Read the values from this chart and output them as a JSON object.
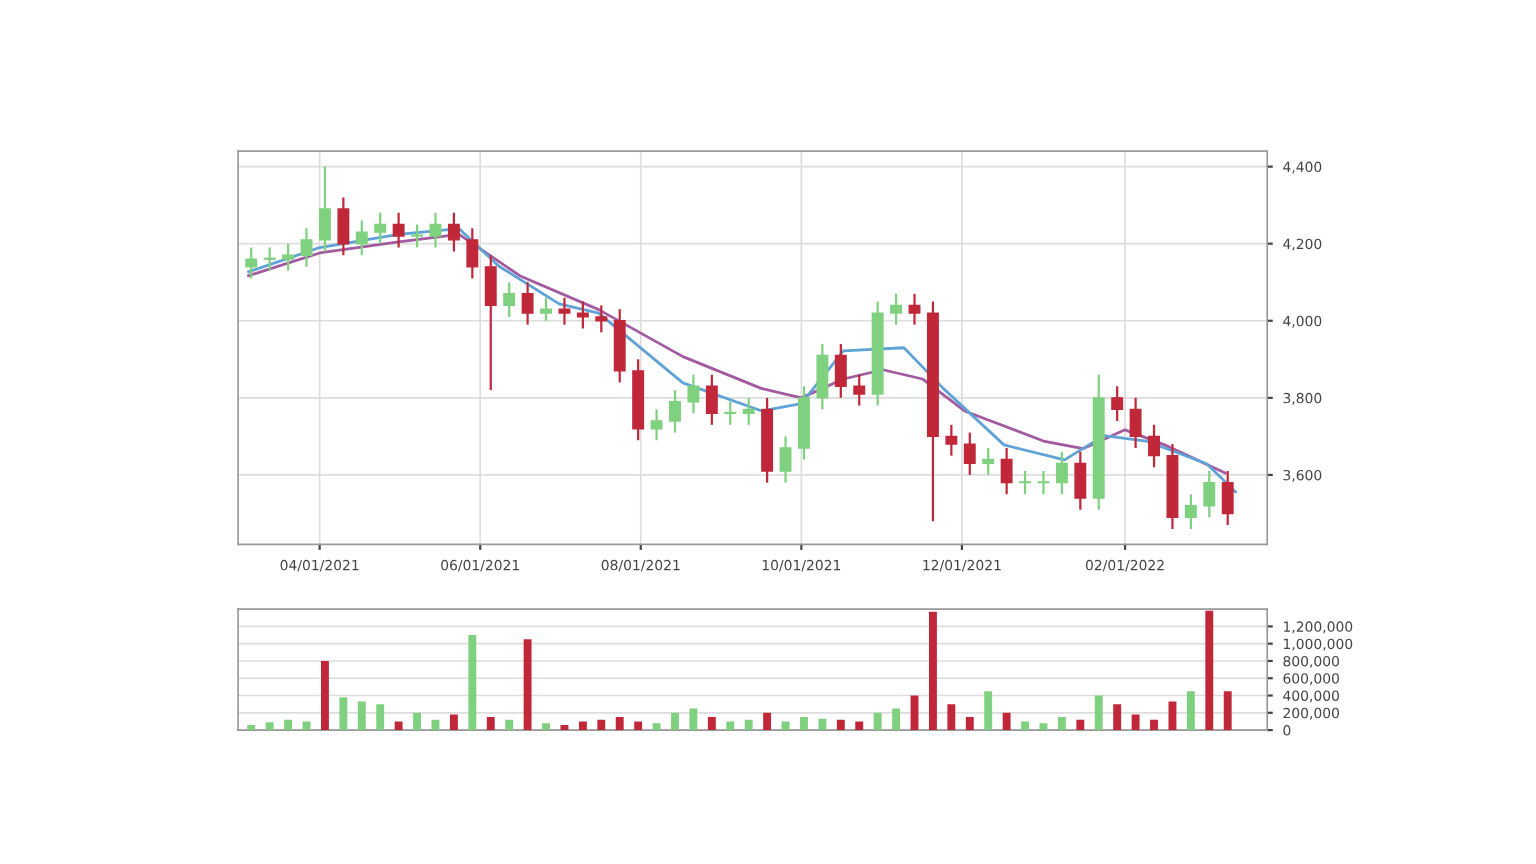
{
  "chart_data": [
    {
      "type": "candlestick",
      "x": [
        "2021-03-06",
        "2021-03-13",
        "2021-03-20",
        "2021-03-27",
        "2021-04-03",
        "2021-04-10",
        "2021-04-17",
        "2021-04-24",
        "2021-05-01",
        "2021-05-08",
        "2021-05-15",
        "2021-05-22",
        "2021-05-29",
        "2021-06-05",
        "2021-06-12",
        "2021-06-19",
        "2021-06-26",
        "2021-07-03",
        "2021-07-10",
        "2021-07-17",
        "2021-07-24",
        "2021-07-31",
        "2021-08-07",
        "2021-08-14",
        "2021-08-21",
        "2021-08-28",
        "2021-09-04",
        "2021-09-11",
        "2021-09-18",
        "2021-09-25",
        "2021-10-02",
        "2021-10-09",
        "2021-10-16",
        "2021-10-23",
        "2021-10-30",
        "2021-11-06",
        "2021-11-13",
        "2021-11-20",
        "2021-11-27",
        "2021-12-04",
        "2021-12-11",
        "2021-12-18",
        "2021-12-25",
        "2022-01-01",
        "2022-01-08",
        "2022-01-15",
        "2022-01-22",
        "2022-01-29",
        "2022-02-05",
        "2022-02-12",
        "2022-02-19",
        "2022-02-26",
        "2022-03-05",
        "2022-03-12"
      ],
      "ohlc": [
        [
          4140,
          4190,
          4110,
          4160
        ],
        [
          4160,
          4190,
          4130,
          4160
        ],
        [
          4160,
          4200,
          4130,
          4170
        ],
        [
          4170,
          4240,
          4140,
          4210
        ],
        [
          4210,
          4400,
          4180,
          4290
        ],
        [
          4290,
          4320,
          4170,
          4200
        ],
        [
          4200,
          4260,
          4170,
          4230
        ],
        [
          4230,
          4280,
          4200,
          4250
        ],
        [
          4250,
          4280,
          4190,
          4220
        ],
        [
          4220,
          4250,
          4190,
          4220
        ],
        [
          4220,
          4280,
          4190,
          4250
        ],
        [
          4250,
          4280,
          4180,
          4210
        ],
        [
          4210,
          4240,
          4110,
          4140
        ],
        [
          4140,
          4170,
          3820,
          4040
        ],
        [
          4040,
          4100,
          4010,
          4070
        ],
        [
          4070,
          4100,
          3990,
          4020
        ],
        [
          4020,
          4060,
          4000,
          4030
        ],
        [
          4030,
          4060,
          3990,
          4020
        ],
        [
          4020,
          4050,
          3980,
          4010
        ],
        [
          4010,
          4040,
          3970,
          4000
        ],
        [
          4000,
          4030,
          3840,
          3870
        ],
        [
          3870,
          3900,
          3690,
          3720
        ],
        [
          3720,
          3770,
          3690,
          3740
        ],
        [
          3740,
          3820,
          3710,
          3790
        ],
        [
          3790,
          3860,
          3760,
          3830
        ],
        [
          3830,
          3860,
          3730,
          3760
        ],
        [
          3760,
          3790,
          3730,
          3760
        ],
        [
          3760,
          3800,
          3730,
          3770
        ],
        [
          3770,
          3800,
          3580,
          3610
        ],
        [
          3610,
          3700,
          3580,
          3670
        ],
        [
          3670,
          3830,
          3640,
          3800
        ],
        [
          3800,
          3940,
          3770,
          3910
        ],
        [
          3910,
          3940,
          3800,
          3830
        ],
        [
          3830,
          3860,
          3780,
          3810
        ],
        [
          3810,
          4050,
          3780,
          4020
        ],
        [
          4020,
          4070,
          3990,
          4040
        ],
        [
          4040,
          4070,
          3990,
          4020
        ],
        [
          4020,
          4050,
          3480,
          3700
        ],
        [
          3700,
          3730,
          3650,
          3680
        ],
        [
          3680,
          3710,
          3600,
          3630
        ],
        [
          3630,
          3670,
          3600,
          3640
        ],
        [
          3640,
          3670,
          3550,
          3580
        ],
        [
          3580,
          3610,
          3550,
          3580
        ],
        [
          3580,
          3610,
          3550,
          3580
        ],
        [
          3580,
          3660,
          3550,
          3630
        ],
        [
          3630,
          3660,
          3510,
          3540
        ],
        [
          3540,
          3860,
          3510,
          3800
        ],
        [
          3800,
          3830,
          3740,
          3770
        ],
        [
          3770,
          3800,
          3670,
          3700
        ],
        [
          3700,
          3730,
          3620,
          3650
        ],
        [
          3650,
          3680,
          3460,
          3490
        ],
        [
          3490,
          3550,
          3460,
          3520
        ],
        [
          3520,
          3610,
          3490,
          3580
        ],
        [
          3580,
          3610,
          3470,
          3500
        ]
      ],
      "series": [
        {
          "type": "line",
          "color": "#a35aa0",
          "x": [
            "2021-03-05",
            "2021-04-01",
            "2021-05-01",
            "2021-05-24",
            "2021-06-16",
            "2021-07-16",
            "2021-08-17",
            "2021-09-16",
            "2021-10-01",
            "2021-10-17",
            "2021-11-01",
            "2021-11-16",
            "2021-12-02",
            "2022-01-01",
            "2022-01-16",
            "2022-02-01",
            "2022-02-16",
            "2022-03-11"
          ],
          "values": [
            4117,
            4176,
            4205,
            4224,
            4117,
            4029,
            3907,
            3824,
            3800,
            3849,
            3873,
            3849,
            3766,
            3688,
            3668,
            3717,
            3678,
            3605
          ]
        },
        {
          "type": "line",
          "color": "#5fa3d6",
          "x": [
            "2021-03-05",
            "2021-04-01",
            "2021-05-01",
            "2021-05-24",
            "2021-06-08",
            "2021-07-01",
            "2021-07-16",
            "2021-08-17",
            "2021-09-16",
            "2021-10-01",
            "2021-10-17",
            "2021-11-09",
            "2021-11-24",
            "2021-12-17",
            "2022-01-09",
            "2022-01-24",
            "2022-02-09",
            "2022-03-04",
            "2022-03-15"
          ],
          "values": [
            4127,
            4190,
            4224,
            4239,
            4142,
            4044,
            4020,
            3839,
            3766,
            3785,
            3922,
            3930,
            3824,
            3678,
            3639,
            3702,
            3688,
            3629,
            3556
          ]
        }
      ],
      "xlim": [
        "2021-03-01",
        "2022-03-27"
      ],
      "xticks": [
        {
          "value": "2021-04-01",
          "label": "04/01/2021"
        },
        {
          "value": "2021-06-01",
          "label": "06/01/2021"
        },
        {
          "value": "2021-08-01",
          "label": "08/01/2021"
        },
        {
          "value": "2021-10-01",
          "label": "10/01/2021"
        },
        {
          "value": "2021-12-01",
          "label": "12/01/2021"
        },
        {
          "value": "2022-02-01",
          "label": "02/01/2022"
        }
      ],
      "ylim": [
        3420,
        4440
      ],
      "yticks": [
        {
          "value": 3600,
          "label": "3,600"
        },
        {
          "value": 3800,
          "label": "3,800"
        },
        {
          "value": 4000,
          "label": "4,000"
        },
        {
          "value": 4200,
          "label": "4,200"
        },
        {
          "value": 4400,
          "label": "4,400"
        }
      ],
      "grid": true
    },
    {
      "type": "bar",
      "x": [
        "2021-03-06",
        "2021-03-13",
        "2021-03-20",
        "2021-03-27",
        "2021-04-03",
        "2021-04-10",
        "2021-04-17",
        "2021-04-24",
        "2021-05-01",
        "2021-05-08",
        "2021-05-15",
        "2021-05-22",
        "2021-05-29",
        "2021-06-05",
        "2021-06-12",
        "2021-06-19",
        "2021-06-26",
        "2021-07-03",
        "2021-07-10",
        "2021-07-17",
        "2021-07-24",
        "2021-07-31",
        "2021-08-07",
        "2021-08-14",
        "2021-08-21",
        "2021-08-28",
        "2021-09-04",
        "2021-09-11",
        "2021-09-18",
        "2021-09-25",
        "2021-10-02",
        "2021-10-09",
        "2021-10-16",
        "2021-10-23",
        "2021-10-30",
        "2021-11-06",
        "2021-11-13",
        "2021-11-20",
        "2021-11-27",
        "2021-12-04",
        "2021-12-11",
        "2021-12-18",
        "2021-12-25",
        "2022-01-01",
        "2022-01-08",
        "2022-01-15",
        "2022-01-22",
        "2022-01-29",
        "2022-02-05",
        "2022-02-12",
        "2022-02-19",
        "2022-02-26",
        "2022-03-05",
        "2022-03-12"
      ],
      "values": [
        60000,
        90000,
        120000,
        100000,
        800000,
        380000,
        330000,
        300000,
        100000,
        200000,
        120000,
        180000,
        1100000,
        150000,
        120000,
        1050000,
        80000,
        60000,
        100000,
        120000,
        150000,
        100000,
        80000,
        200000,
        250000,
        150000,
        100000,
        120000,
        200000,
        100000,
        150000,
        130000,
        120000,
        100000,
        200000,
        250000,
        400000,
        1370000,
        300000,
        150000,
        450000,
        200000,
        100000,
        80000,
        150000,
        120000,
        400000,
        300000,
        180000,
        120000,
        330000,
        450000,
        1380000,
        450000
      ],
      "colors": [
        "#7fd17f",
        "#7fd17f",
        "#7fd17f",
        "#7fd17f",
        "#c0283a",
        "#7fd17f",
        "#7fd17f",
        "#7fd17f",
        "#c0283a",
        "#7fd17f",
        "#7fd17f",
        "#c0283a",
        "#7fd17f",
        "#c0283a",
        "#7fd17f",
        "#c0283a",
        "#7fd17f",
        "#c0283a",
        "#c0283a",
        "#c0283a",
        "#c0283a",
        "#c0283a",
        "#7fd17f",
        "#7fd17f",
        "#7fd17f",
        "#c0283a",
        "#7fd17f",
        "#7fd17f",
        "#c0283a",
        "#7fd17f",
        "#7fd17f",
        "#7fd17f",
        "#c0283a",
        "#c0283a",
        "#7fd17f",
        "#7fd17f",
        "#c0283a",
        "#c0283a",
        "#c0283a",
        "#c0283a",
        "#7fd17f",
        "#c0283a",
        "#7fd17f",
        "#7fd17f",
        "#7fd17f",
        "#c0283a",
        "#7fd17f",
        "#c0283a",
        "#c0283a",
        "#c0283a",
        "#c0283a",
        "#7fd17f",
        "#c0283a",
        "#c0283a"
      ],
      "xlim": [
        "2021-03-01",
        "2022-03-27"
      ],
      "ylim": [
        0,
        1400000
      ],
      "yticks": [
        {
          "value": 0,
          "label": "0"
        },
        {
          "value": 200000,
          "label": "200,000"
        },
        {
          "value": 400000,
          "label": "400,000"
        },
        {
          "value": 600000,
          "label": "600,000"
        },
        {
          "value": 800000,
          "label": "800,000"
        },
        {
          "value": 1000000,
          "label": "1,000,000"
        },
        {
          "value": 1200000,
          "label": "1,200,000"
        }
      ],
      "tick_labels": "y",
      "grid": true
    }
  ]
}
